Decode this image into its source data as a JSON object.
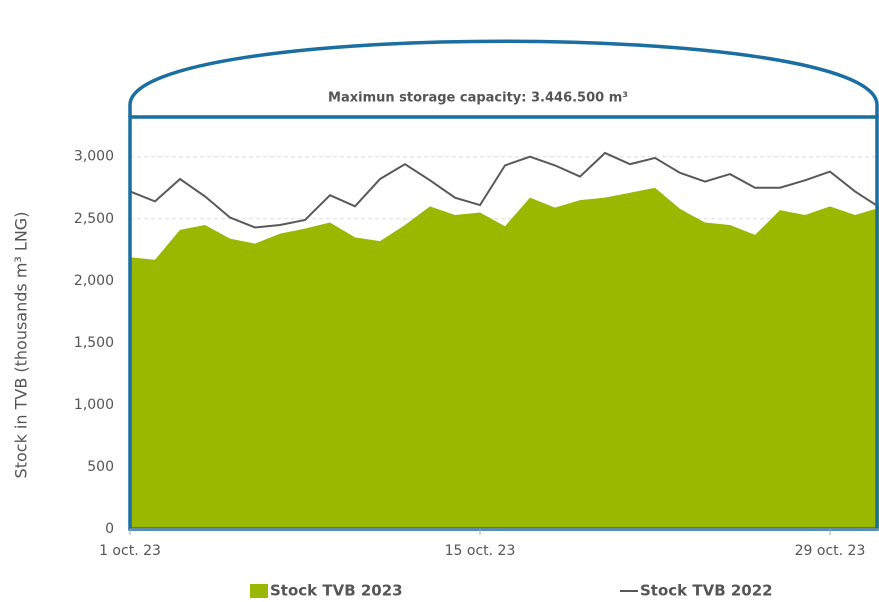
{
  "chart_data": {
    "type": "area-line",
    "title": "Maximun storage capacity: 3.446.500 m³",
    "y_label": "Stock in TVB (thousands m³ LNG)",
    "categories": [
      "1 oct. 23",
      null,
      null,
      null,
      null,
      null,
      null,
      null,
      null,
      null,
      null,
      null,
      null,
      null,
      "15 oct. 23",
      null,
      null,
      null,
      null,
      null,
      null,
      null,
      null,
      null,
      null,
      null,
      null,
      null,
      "29 oct. 23",
      null,
      null
    ],
    "series": [
      {
        "name": "Stock TVB 2023",
        "kind": "area",
        "color": "#9bb800",
        "values": [
          2190,
          2170,
          2410,
          2450,
          2340,
          2300,
          2380,
          2420,
          2470,
          2350,
          2320,
          2450,
          2600,
          2530,
          2550,
          2440,
          2670,
          2590,
          2650,
          2670,
          2710,
          2750,
          2580,
          2470,
          2450,
          2370,
          2570,
          2530,
          2600,
          2530,
          2590
        ]
      },
      {
        "name": "Stock TVB 2022",
        "kind": "line",
        "color": "#595959",
        "values": [
          2720,
          2640,
          2820,
          2680,
          2510,
          2430,
          2450,
          2490,
          2690,
          2600,
          2820,
          2940,
          2810,
          2670,
          2610,
          2930,
          3000,
          2930,
          2840,
          3030,
          2940,
          2990,
          2870,
          2800,
          2860,
          2750,
          2750,
          2810,
          2880,
          2720,
          2590
        ]
      }
    ],
    "ylim": [
      0,
      3320
    ],
    "yticks": [
      0,
      500,
      {
        "value": 1000,
        "label": "1,000"
      },
      {
        "value": 1500,
        "label": "1,500"
      },
      {
        "value": 2000,
        "label": "2,000"
      },
      {
        "value": 2500,
        "label": "2,500"
      },
      {
        "value": 3000,
        "label": "3,000"
      }
    ],
    "grid": true
  }
}
